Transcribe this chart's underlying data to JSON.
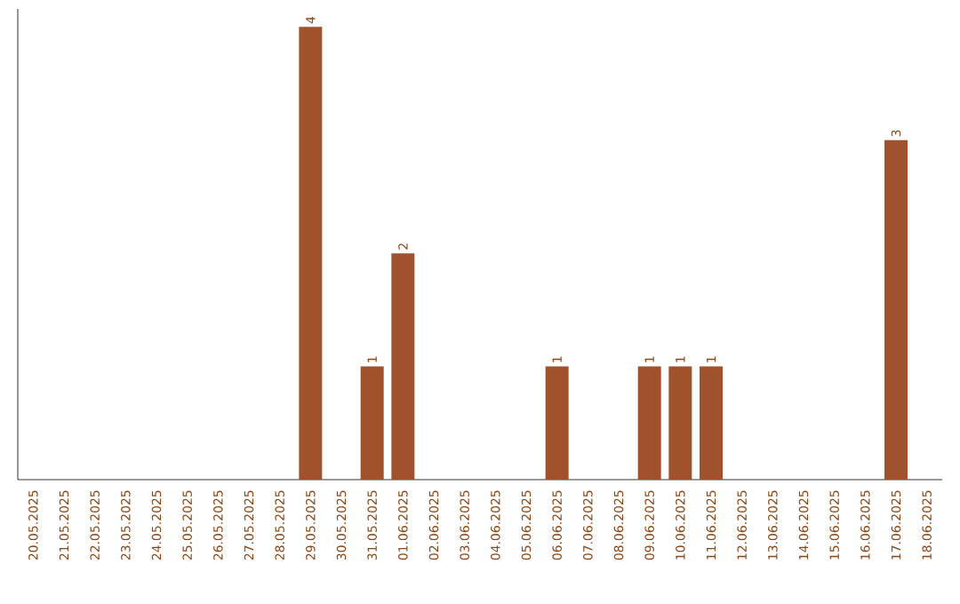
{
  "chart_data": {
    "type": "bar",
    "categories": [
      "20.05.2025",
      "21.05.2025",
      "22.05.2025",
      "23.05.2025",
      "24.05.2025",
      "25.05.2025",
      "26.05.2025",
      "27.05.2025",
      "28.05.2025",
      "29.05.2025",
      "30.05.2025",
      "31.05.2025",
      "01.06.2025",
      "02.06.2025",
      "03.06.2025",
      "04.06.2025",
      "05.06.2025",
      "06.06.2025",
      "07.06.2025",
      "08.06.2025",
      "09.06.2025",
      "10.06.2025",
      "11.06.2025",
      "12.06.2025",
      "13.06.2025",
      "14.06.2025",
      "15.06.2025",
      "16.06.2025",
      "17.06.2025",
      "18.06.2025"
    ],
    "values": [
      0,
      0,
      0,
      0,
      0,
      0,
      0,
      0,
      0,
      4,
      0,
      1,
      2,
      0,
      0,
      0,
      0,
      1,
      0,
      0,
      1,
      1,
      1,
      0,
      0,
      0,
      0,
      0,
      3,
      0
    ],
    "value_labels": [
      null,
      null,
      null,
      null,
      null,
      null,
      null,
      null,
      null,
      "4",
      null,
      "1",
      "2",
      null,
      null,
      null,
      null,
      "1",
      null,
      null,
      "1",
      "1",
      "1",
      null,
      null,
      null,
      null,
      null,
      "3",
      null
    ],
    "color": "#a0522d"
  }
}
